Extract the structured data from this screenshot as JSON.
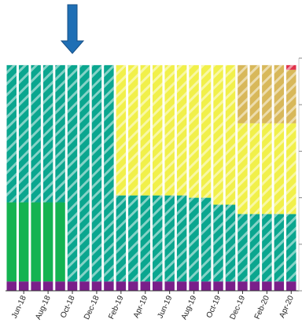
{
  "chart_data": {
    "type": "bar",
    "stacked": true,
    "x_tick_labels": [
      "Jun-18",
      "Aug-18",
      "Oct-18",
      "Dec-18",
      "Feb-19",
      "Apr-19",
      "Jun-19",
      "Aug-19",
      "Oct-19",
      "Dec-19",
      "Feb-20",
      "Apr-20"
    ],
    "categories": [
      "May-18",
      "Jun-18",
      "Jul-18",
      "Aug-18",
      "Sep-18",
      "Oct-18",
      "Nov-18",
      "Dec-18",
      "Jan-19",
      "Feb-19",
      "Mar-19",
      "Apr-19",
      "May-19",
      "Jun-19",
      "Jul-19",
      "Aug-19",
      "Sep-19",
      "Oct-19",
      "Nov-19",
      "Dec-19",
      "Jan-20",
      "Feb-20",
      "Mar-20",
      "Apr-20"
    ],
    "ylim": [
      0,
      100
    ],
    "grid": false,
    "legend": "none",
    "y_ticks_labeled": false,
    "series": [
      {
        "color": "#7a1f8a",
        "hatch": false,
        "values": [
          4,
          4,
          4,
          4,
          4,
          4,
          4,
          4,
          4,
          4,
          4,
          4,
          4,
          4,
          4,
          4,
          4,
          4,
          4,
          4,
          4,
          4,
          4,
          4
        ]
      },
      {
        "color": "#7a1f8a",
        "hatch": true,
        "values": [
          0,
          0,
          0,
          0,
          0,
          0,
          0,
          0,
          0,
          0,
          0,
          0,
          0,
          0,
          0,
          0,
          0,
          0,
          0,
          0,
          0,
          0,
          0,
          0
        ]
      },
      {
        "color": "#14b351",
        "hatch": false,
        "values": [
          34,
          34,
          34,
          34,
          34,
          0,
          0,
          0,
          0,
          0,
          0,
          0,
          0,
          0,
          0,
          0,
          0,
          0,
          0,
          0,
          0,
          0,
          0,
          0
        ]
      },
      {
        "color": "#0aa68f",
        "hatch": true,
        "values": [
          59,
          59,
          59,
          59,
          59,
          93,
          93,
          93,
          93,
          37,
          37,
          37,
          37,
          37,
          37,
          36,
          36,
          33,
          33,
          29,
          29,
          29,
          29,
          29
        ]
      },
      {
        "color": "#f1f04a",
        "hatch": true,
        "values": [
          0,
          0,
          0,
          0,
          0,
          0,
          0,
          0,
          0,
          56,
          56,
          56,
          56,
          56,
          56,
          57,
          57,
          60,
          60,
          39,
          39,
          39,
          39,
          39
        ]
      },
      {
        "color": "#d8b85a",
        "hatch": true,
        "values": [
          0,
          0,
          0,
          0,
          0,
          0,
          0,
          0,
          0,
          0,
          0,
          0,
          0,
          0,
          0,
          0,
          0,
          0,
          0,
          25,
          25,
          25,
          25,
          23
        ]
      },
      {
        "color": "#e0314a",
        "hatch": true,
        "values": [
          0,
          0,
          0,
          0,
          0,
          0,
          0,
          0,
          0,
          0,
          0,
          0,
          0,
          0,
          0,
          0,
          0,
          0,
          0,
          0,
          0,
          0,
          0,
          2
        ]
      }
    ],
    "annotations": [
      {
        "type": "arrow",
        "color": "#1f6fb5",
        "points_to": "Oct-18"
      }
    ]
  }
}
